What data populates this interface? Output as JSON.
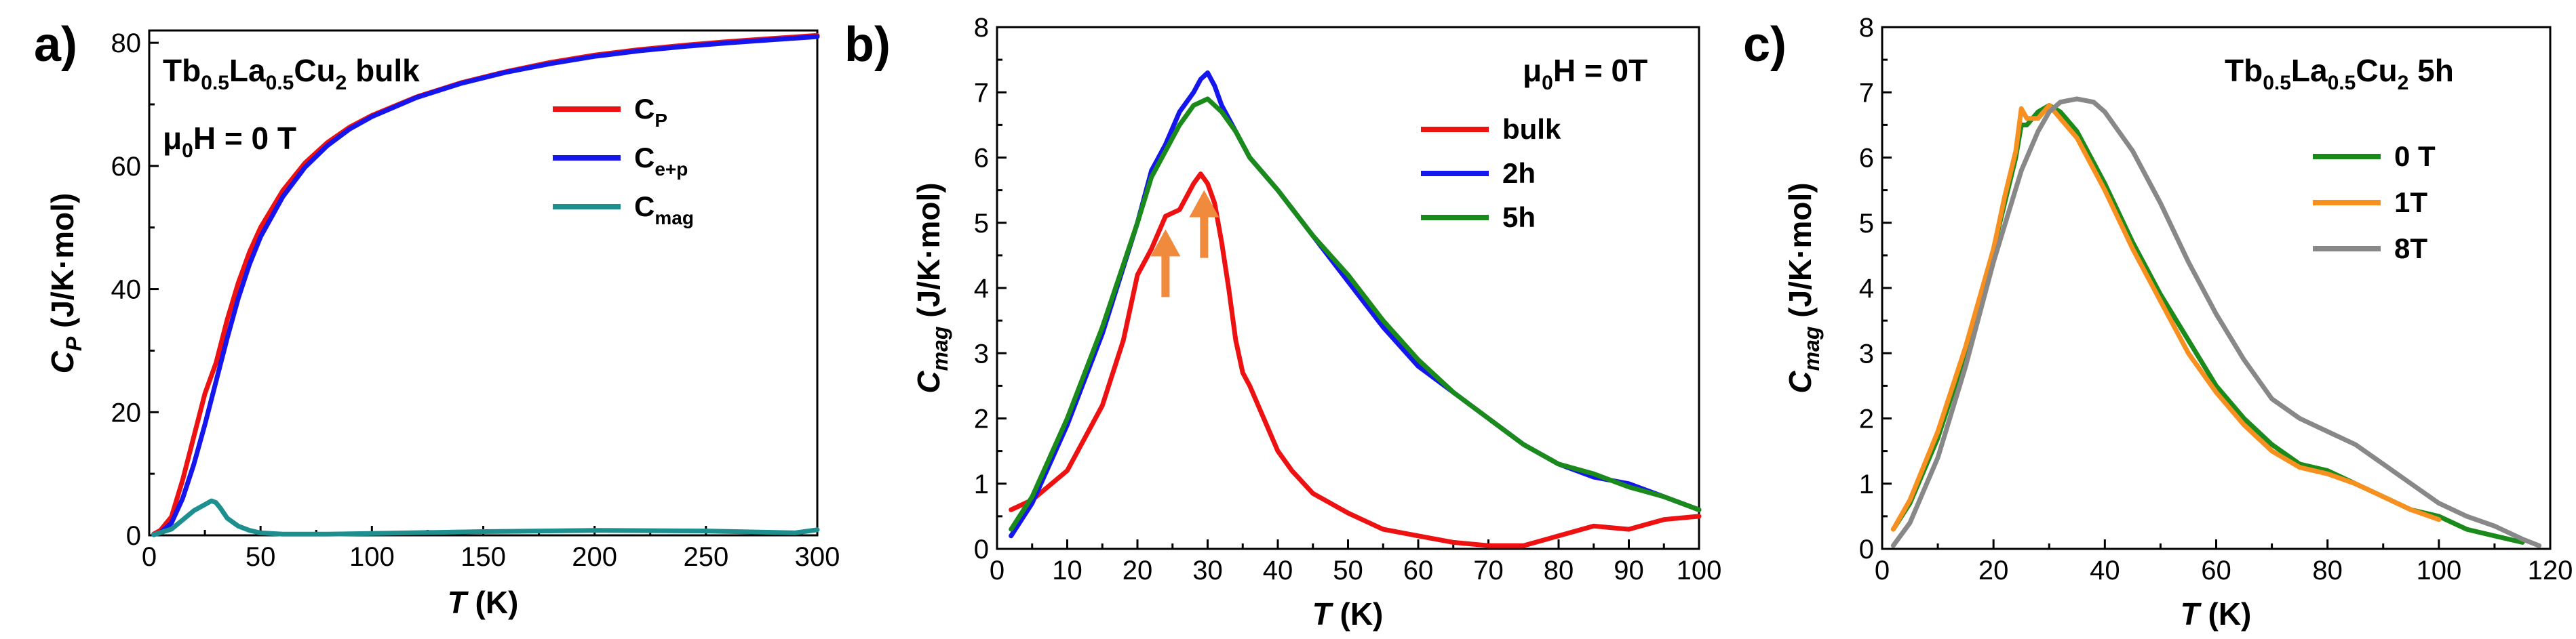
{
  "chart_data": [
    {
      "type": "line",
      "panel": "a)",
      "title": "Tb0.5La0.5Cu2 bulk",
      "title_parts": {
        "a": "Tb",
        "a_sub": "0.5",
        "b": "La",
        "b_sub": "0.5",
        "c": "Cu",
        "c_sub": "2",
        "d": " bulk"
      },
      "field_label": {
        "mu": "μ",
        "sub": "0",
        "rest": "H = 0 T"
      },
      "xlabel": {
        "var": "T",
        "unit": " (K)"
      },
      "ylabel": {
        "var": "C",
        "sub": "P",
        "unit": " (J/K·mol)"
      },
      "xlim": [
        0,
        300
      ],
      "ylim": [
        0,
        82
      ],
      "xticks": [
        0,
        50,
        100,
        150,
        200,
        250,
        300
      ],
      "yticks": [
        0,
        20,
        40,
        60,
        80
      ],
      "series": [
        {
          "name": "C",
          "sub": "P",
          "color": "#ee1111",
          "x": [
            2,
            5,
            10,
            15,
            20,
            25,
            30,
            35,
            40,
            45,
            50,
            60,
            70,
            80,
            90,
            100,
            120,
            140,
            160,
            180,
            200,
            220,
            240,
            260,
            280,
            300
          ],
          "y": [
            0.2,
            0.8,
            3,
            9,
            16,
            23,
            28,
            35,
            41,
            46,
            50,
            56,
            60.5,
            63.8,
            66.3,
            68.2,
            71.2,
            73.5,
            75.3,
            76.8,
            78,
            78.9,
            79.6,
            80.2,
            80.7,
            81.2
          ]
        },
        {
          "name": "C",
          "sub": "e+p",
          "color": "#1515ee",
          "x": [
            2,
            5,
            10,
            15,
            20,
            25,
            30,
            35,
            40,
            45,
            50,
            60,
            70,
            80,
            90,
            100,
            120,
            140,
            160,
            180,
            200,
            220,
            240,
            260,
            280,
            300
          ],
          "y": [
            0.1,
            0.4,
            2,
            6,
            11.5,
            18,
            25,
            32,
            38.5,
            44,
            48.5,
            55,
            59.8,
            63.3,
            66,
            68,
            71.1,
            73.4,
            75.2,
            76.6,
            77.8,
            78.7,
            79.4,
            80,
            80.5,
            81
          ]
        },
        {
          "name": "C",
          "sub": "mag",
          "color": "#1e8f8f",
          "x": [
            2,
            10,
            15,
            20,
            25,
            28,
            30,
            32,
            35,
            40,
            45,
            50,
            60,
            80,
            100,
            150,
            200,
            250,
            290,
            300
          ],
          "y": [
            0.1,
            1,
            2.5,
            4,
            5,
            5.6,
            5.3,
            4.4,
            2.8,
            1.5,
            0.8,
            0.4,
            0.2,
            0.2,
            0.3,
            0.6,
            0.8,
            0.7,
            0.4,
            0.9
          ]
        }
      ]
    },
    {
      "type": "line",
      "panel": "b)",
      "field_label": {
        "mu": "μ",
        "sub": "0",
        "rest": "H = 0T"
      },
      "xlabel": {
        "var": "T",
        "unit": " (K)"
      },
      "ylabel": {
        "var": "C",
        "sub": "mag",
        "unit": " (J/K·mol)"
      },
      "xlim": [
        0,
        100
      ],
      "ylim": [
        0,
        8
      ],
      "xticks": [
        0,
        10,
        20,
        30,
        40,
        50,
        60,
        70,
        80,
        90,
        100
      ],
      "yticks": [
        0,
        1,
        2,
        3,
        4,
        5,
        6,
        7,
        8
      ],
      "arrows": [
        {
          "x": 24,
          "y": 4.9
        },
        {
          "x": 29.5,
          "y": 5.5
        }
      ],
      "arrow_color": "#f08a3c",
      "series": [
        {
          "name": "bulk",
          "color": "#ee1111",
          "x": [
            2,
            5,
            10,
            15,
            18,
            20,
            22,
            24,
            26,
            28,
            29,
            30,
            31,
            32,
            33,
            34,
            35,
            36,
            38,
            40,
            42,
            45,
            50,
            55,
            60,
            65,
            70,
            75,
            80,
            85,
            90,
            95,
            100
          ],
          "y": [
            0.6,
            0.75,
            1.2,
            2.2,
            3.2,
            4.2,
            4.6,
            5.1,
            5.2,
            5.6,
            5.75,
            5.6,
            5.3,
            4.7,
            4.0,
            3.2,
            2.7,
            2.5,
            2.0,
            1.5,
            1.2,
            0.85,
            0.55,
            0.3,
            0.2,
            0.1,
            0.05,
            0.05,
            0.2,
            0.35,
            0.3,
            0.45,
            0.5
          ]
        },
        {
          "name": "2h",
          "color": "#1515ee",
          "x": [
            2,
            5,
            10,
            15,
            20,
            22,
            24,
            26,
            28,
            29,
            30,
            31,
            32,
            34,
            36,
            40,
            45,
            50,
            55,
            60,
            65,
            70,
            75,
            80,
            85,
            90,
            95,
            100
          ],
          "y": [
            0.2,
            0.7,
            1.9,
            3.3,
            5.0,
            5.8,
            6.2,
            6.7,
            7.0,
            7.2,
            7.3,
            7.1,
            6.8,
            6.4,
            6.0,
            5.5,
            4.8,
            4.1,
            3.4,
            2.8,
            2.4,
            2.0,
            1.6,
            1.3,
            1.1,
            1.0,
            0.8,
            0.6
          ]
        },
        {
          "name": "5h",
          "color": "#1a8a1a",
          "x": [
            2,
            5,
            10,
            15,
            20,
            22,
            24,
            26,
            28,
            29,
            30,
            31,
            32,
            34,
            36,
            40,
            45,
            50,
            55,
            60,
            65,
            70,
            75,
            80,
            85,
            90,
            95,
            100
          ],
          "y": [
            0.3,
            0.8,
            2.0,
            3.4,
            5.0,
            5.7,
            6.1,
            6.5,
            6.8,
            6.85,
            6.9,
            6.8,
            6.7,
            6.4,
            6.0,
            5.5,
            4.8,
            4.2,
            3.5,
            2.9,
            2.4,
            2.0,
            1.6,
            1.3,
            1.15,
            0.95,
            0.8,
            0.6
          ]
        }
      ]
    },
    {
      "type": "line",
      "panel": "c)",
      "title_parts": {
        "a": "Tb",
        "a_sub": "0.5",
        "b": "La",
        "b_sub": "0.5",
        "c": "Cu",
        "c_sub": "2",
        "d": " 5h"
      },
      "xlabel": {
        "var": "T",
        "unit": " (K)"
      },
      "ylabel": {
        "var": "C",
        "sub": "mag",
        "unit": " (J/K·mol)"
      },
      "xlim": [
        0,
        120
      ],
      "ylim": [
        0,
        8
      ],
      "xticks": [
        0,
        20,
        40,
        60,
        80,
        100,
        120
      ],
      "yticks": [
        0,
        1,
        2,
        3,
        4,
        5,
        6,
        7,
        8
      ],
      "series": [
        {
          "name": "0 T",
          "color": "#1a8a1a",
          "x": [
            2,
            5,
            10,
            15,
            20,
            22,
            24,
            25,
            26,
            28,
            30,
            32,
            35,
            40,
            45,
            50,
            55,
            60,
            65,
            70,
            75,
            80,
            85,
            90,
            95,
            100,
            105,
            110,
            115
          ],
          "y": [
            0.3,
            0.7,
            1.7,
            3.0,
            4.6,
            5.3,
            6.0,
            6.5,
            6.5,
            6.7,
            6.8,
            6.7,
            6.4,
            5.6,
            4.7,
            3.9,
            3.2,
            2.5,
            2.0,
            1.6,
            1.3,
            1.2,
            1.0,
            0.8,
            0.6,
            0.5,
            0.3,
            0.2,
            0.1
          ]
        },
        {
          "name": "1T",
          "color": "#f7901e",
          "x": [
            2,
            5,
            10,
            15,
            20,
            22,
            24,
            25,
            26,
            28,
            30,
            32,
            35,
            40,
            45,
            50,
            55,
            60,
            65,
            70,
            75,
            80,
            85,
            90,
            95,
            100
          ],
          "y": [
            0.3,
            0.75,
            1.8,
            3.1,
            4.6,
            5.4,
            6.1,
            6.75,
            6.6,
            6.6,
            6.8,
            6.6,
            6.3,
            5.5,
            4.6,
            3.8,
            3.0,
            2.4,
            1.9,
            1.5,
            1.25,
            1.15,
            1.0,
            0.8,
            0.6,
            0.45
          ]
        },
        {
          "name": "8T",
          "color": "#888888",
          "x": [
            2,
            5,
            10,
            15,
            20,
            25,
            28,
            30,
            32,
            35,
            38,
            40,
            45,
            50,
            55,
            60,
            65,
            70,
            75,
            80,
            85,
            90,
            95,
            100,
            105,
            110,
            115,
            118
          ],
          "y": [
            0.05,
            0.4,
            1.4,
            2.8,
            4.4,
            5.8,
            6.4,
            6.7,
            6.85,
            6.9,
            6.85,
            6.7,
            6.1,
            5.3,
            4.4,
            3.6,
            2.9,
            2.3,
            2.0,
            1.8,
            1.6,
            1.3,
            1.0,
            0.7,
            0.5,
            0.35,
            0.15,
            0.05
          ]
        }
      ]
    }
  ]
}
